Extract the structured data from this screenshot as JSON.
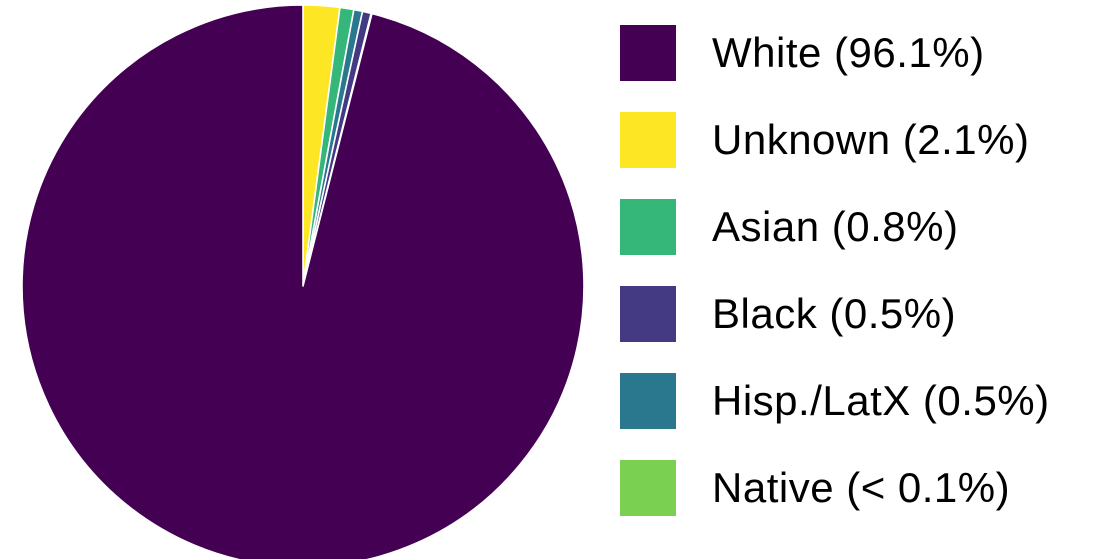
{
  "chart_data": {
    "type": "pie",
    "title": "",
    "slices": [
      {
        "label": "White (96.1%)",
        "value": 96.1,
        "color": "#440154"
      },
      {
        "label": "Unknown (2.1%)",
        "value": 2.1,
        "color": "#fde725"
      },
      {
        "label": "Asian (0.8%)",
        "value": 0.8,
        "color": "#35b779"
      },
      {
        "label": "Black (0.5%)",
        "value": 0.5,
        "color": "#443983"
      },
      {
        "label": "Hisp./LatX (0.5%)",
        "value": 0.5,
        "color": "#2a788e"
      },
      {
        "label": "Native (< 0.1%)",
        "value": 0.05,
        "color": "#7ad151"
      }
    ],
    "slice_order_clockwise_from_top": [
      "Unknown (2.1%)",
      "Asian (0.8%)",
      "Hisp./LatX (0.5%)",
      "Black (0.5%)",
      "Native (< 0.1%)",
      "White (96.1%)"
    ],
    "legend_position": "right"
  }
}
